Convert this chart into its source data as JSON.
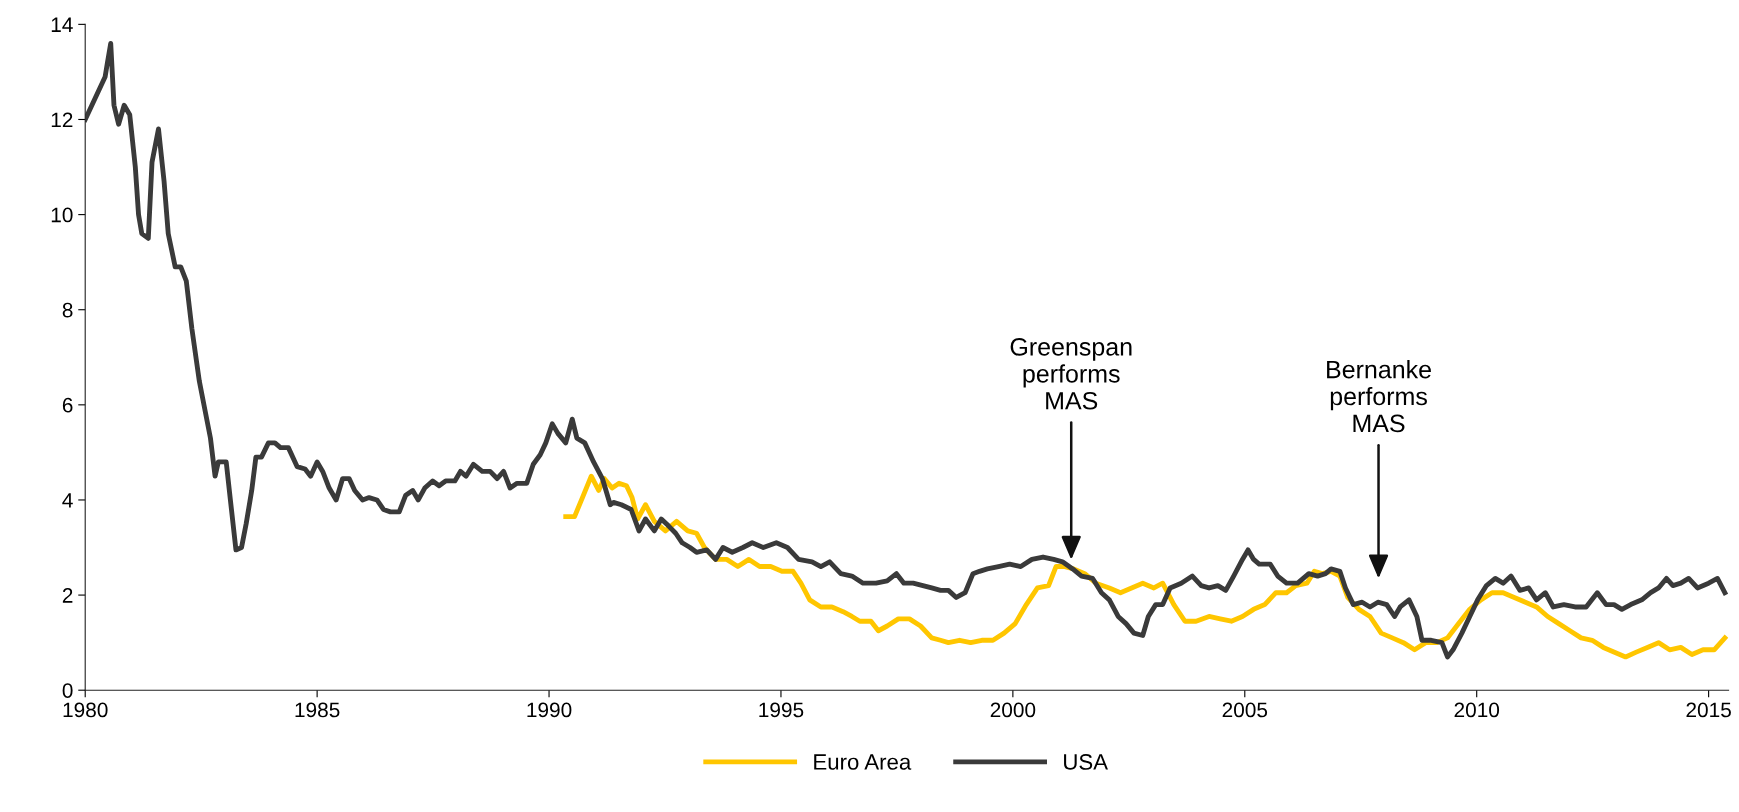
{
  "chart_data": {
    "type": "line",
    "xlim": [
      1980,
      2015.43
    ],
    "xticks": [
      1980,
      1985,
      1990,
      1995,
      2000,
      2005,
      2010,
      2015
    ],
    "ylim": [
      0,
      14
    ],
    "yticks": [
      0,
      2,
      4,
      6,
      8,
      10,
      12,
      14
    ],
    "grid": false,
    "legend": "bottom",
    "marker": "none",
    "line_style": "solid",
    "annotations": [
      "Greenspan\nperforms\nMAS",
      "Bernanke\nperforms\nMAS"
    ],
    "series": [
      {
        "name": "Euro Area",
        "color": "#ffc600",
        "x": [
          1990.36,
          1990.55,
          1990.72,
          1990.91,
          1991.07,
          1991.19,
          1991.36,
          1991.51,
          1991.67,
          1991.79,
          1991.91,
          1992.08,
          1992.27,
          1992.51,
          1992.75,
          1992.99,
          1993.18,
          1993.35,
          1993.59,
          1993.83,
          1994.07,
          1994.31,
          1994.54,
          1994.78,
          1995.02,
          1995.26,
          1995.43,
          1995.62,
          1995.86,
          1996.1,
          1996.34,
          1996.53,
          1996.7,
          1996.94,
          1997.1,
          1997.29,
          1997.53,
          1997.77,
          1998.01,
          1998.25,
          1998.44,
          1998.61,
          1998.85,
          1999.09,
          1999.33,
          1999.57,
          1999.81,
          2000.05,
          2000.29,
          2000.53,
          2000.77,
          2000.93,
          2001.12,
          2001.31,
          2001.55,
          2001.79,
          2002.08,
          2002.32,
          2002.56,
          2002.8,
          2003.04,
          2003.23,
          2003.47,
          2003.71,
          2003.95,
          2004.23,
          2004.47,
          2004.71,
          2004.95,
          2005.19,
          2005.43,
          2005.67,
          2005.9,
          2006.1,
          2006.34,
          2006.5,
          2006.67,
          2006.86,
          2007.05,
          2007.22,
          2007.46,
          2007.7,
          2007.94,
          2008.18,
          2008.42,
          2008.66,
          2008.9,
          2009.14,
          2009.37,
          2009.61,
          2009.85,
          2010.09,
          2010.33,
          2010.57,
          2010.81,
          2011.05,
          2011.29,
          2011.53,
          2011.77,
          2012.01,
          2012.25,
          2012.49,
          2012.73,
          2012.97,
          2013.21,
          2013.44,
          2013.68,
          2013.92,
          2014.16,
          2014.4,
          2014.64,
          2014.88,
          2015.12,
          2015.35
        ],
        "values": [
          3.65,
          3.65,
          4.05,
          4.5,
          4.2,
          4.45,
          4.25,
          4.35,
          4.3,
          4.05,
          3.6,
          3.9,
          3.55,
          3.35,
          3.55,
          3.35,
          3.3,
          3.0,
          2.75,
          2.75,
          2.6,
          2.75,
          2.6,
          2.6,
          2.5,
          2.5,
          2.25,
          1.9,
          1.75,
          1.75,
          1.65,
          1.55,
          1.45,
          1.45,
          1.25,
          1.35,
          1.5,
          1.5,
          1.35,
          1.1,
          1.05,
          1.0,
          1.05,
          1.0,
          1.05,
          1.05,
          1.2,
          1.4,
          1.8,
          2.15,
          2.2,
          2.6,
          2.6,
          2.55,
          2.45,
          2.25,
          2.15,
          2.05,
          2.15,
          2.25,
          2.15,
          2.25,
          1.8,
          1.45,
          1.45,
          1.55,
          1.5,
          1.45,
          1.55,
          1.7,
          1.8,
          2.05,
          2.05,
          2.2,
          2.25,
          2.5,
          2.45,
          2.5,
          2.4,
          1.95,
          1.7,
          1.55,
          1.2,
          1.1,
          1.0,
          0.85,
          1.0,
          1.0,
          1.1,
          1.4,
          1.7,
          1.9,
          2.05,
          2.05,
          1.95,
          1.85,
          1.75,
          1.55,
          1.4,
          1.25,
          1.1,
          1.05,
          0.9,
          0.8,
          0.7,
          0.8,
          0.9,
          1.0,
          0.85,
          0.9,
          0.75,
          0.85,
          0.85,
          1.1
        ]
      },
      {
        "name": "USA",
        "color": "#3a3a3a",
        "x": [
          1980.0,
          1980.43,
          1980.48,
          1980.55,
          1980.62,
          1980.72,
          1980.84,
          1980.96,
          1981.08,
          1981.15,
          1981.22,
          1981.36,
          1981.44,
          1981.58,
          1981.7,
          1981.79,
          1981.94,
          1982.06,
          1982.18,
          1982.3,
          1982.46,
          1982.58,
          1982.7,
          1982.8,
          1982.87,
          1983.04,
          1983.13,
          1983.25,
          1983.37,
          1983.47,
          1983.59,
          1983.68,
          1983.8,
          1983.95,
          1984.09,
          1984.21,
          1984.38,
          1984.57,
          1984.74,
          1984.86,
          1985.0,
          1985.12,
          1985.26,
          1985.41,
          1985.55,
          1985.69,
          1985.81,
          1985.98,
          1986.12,
          1986.29,
          1986.43,
          1986.58,
          1986.77,
          1986.91,
          1987.06,
          1987.18,
          1987.32,
          1987.49,
          1987.63,
          1987.77,
          1987.97,
          1988.09,
          1988.21,
          1988.37,
          1988.56,
          1988.73,
          1988.88,
          1989.02,
          1989.16,
          1989.31,
          1989.52,
          1989.66,
          1989.81,
          1989.93,
          1990.07,
          1990.19,
          1990.36,
          1990.5,
          1990.6,
          1990.77,
          1990.96,
          1991.15,
          1991.32,
          1991.39,
          1991.56,
          1991.77,
          1991.94,
          1992.08,
          1992.27,
          1992.42,
          1992.58,
          1992.73,
          1992.87,
          1993.04,
          1993.18,
          1993.4,
          1993.59,
          1993.75,
          1993.95,
          1994.18,
          1994.38,
          1994.62,
          1994.9,
          1995.14,
          1995.38,
          1995.67,
          1995.86,
          1996.05,
          1996.29,
          1996.53,
          1996.77,
          1997.05,
          1997.29,
          1997.49,
          1997.65,
          1997.85,
          1998.06,
          1998.25,
          1998.44,
          1998.61,
          1998.78,
          1998.97,
          1999.14,
          1999.28,
          1999.45,
          1999.69,
          1999.93,
          2000.17,
          2000.41,
          2000.65,
          2000.88,
          2001.07,
          2001.29,
          2001.48,
          2001.72,
          2001.91,
          2002.08,
          2002.27,
          2002.44,
          2002.61,
          2002.8,
          2002.92,
          2003.08,
          2003.23,
          2003.39,
          2003.63,
          2003.87,
          2004.06,
          2004.23,
          2004.42,
          2004.59,
          2004.76,
          2004.95,
          2005.07,
          2005.19,
          2005.31,
          2005.55,
          2005.71,
          2005.9,
          2006.14,
          2006.38,
          2006.57,
          2006.74,
          2006.86,
          2007.05,
          2007.17,
          2007.34,
          2007.53,
          2007.7,
          2007.87,
          2008.06,
          2008.23,
          2008.35,
          2008.54,
          2008.71,
          2008.82,
          2009.02,
          2009.25,
          2009.37,
          2009.49,
          2009.68,
          2009.85,
          2010.02,
          2010.21,
          2010.4,
          2010.57,
          2010.74,
          2010.93,
          2011.12,
          2011.29,
          2011.48,
          2011.65,
          2011.88,
          2012.12,
          2012.36,
          2012.6,
          2012.79,
          2012.96,
          2013.13,
          2013.32,
          2013.56,
          2013.75,
          2013.92,
          2014.09,
          2014.23,
          2014.4,
          2014.57,
          2014.76,
          2015.0,
          2015.19,
          2015.35
        ],
        "values": [
          12.0,
          12.9,
          13.2,
          13.6,
          12.3,
          11.9,
          12.3,
          12.1,
          11.0,
          10.0,
          9.6,
          9.5,
          11.1,
          11.8,
          10.7,
          9.6,
          8.9,
          8.9,
          8.6,
          7.6,
          6.5,
          5.9,
          5.3,
          4.5,
          4.8,
          4.8,
          4.0,
          2.95,
          3.0,
          3.5,
          4.2,
          4.9,
          4.9,
          5.2,
          5.2,
          5.1,
          5.1,
          4.7,
          4.65,
          4.5,
          4.8,
          4.6,
          4.25,
          4.0,
          4.45,
          4.45,
          4.2,
          4.0,
          4.05,
          4.0,
          3.8,
          3.75,
          3.75,
          4.1,
          4.2,
          4.0,
          4.25,
          4.4,
          4.3,
          4.4,
          4.4,
          4.6,
          4.5,
          4.75,
          4.6,
          4.6,
          4.45,
          4.6,
          4.25,
          4.35,
          4.35,
          4.75,
          4.95,
          5.2,
          5.6,
          5.4,
          5.2,
          5.7,
          5.3,
          5.2,
          4.8,
          4.45,
          3.9,
          3.95,
          3.9,
          3.8,
          3.35,
          3.6,
          3.35,
          3.6,
          3.45,
          3.3,
          3.1,
          3.0,
          2.9,
          2.95,
          2.75,
          3.0,
          2.9,
          3.0,
          3.1,
          3.0,
          3.1,
          3.0,
          2.75,
          2.7,
          2.6,
          2.7,
          2.45,
          2.4,
          2.25,
          2.25,
          2.3,
          2.45,
          2.25,
          2.25,
          2.2,
          2.15,
          2.1,
          2.1,
          1.95,
          2.05,
          2.45,
          2.5,
          2.55,
          2.6,
          2.65,
          2.6,
          2.75,
          2.8,
          2.75,
          2.7,
          2.55,
          2.4,
          2.35,
          2.05,
          1.9,
          1.55,
          1.4,
          1.2,
          1.15,
          1.55,
          1.8,
          1.8,
          2.15,
          2.25,
          2.4,
          2.2,
          2.15,
          2.2,
          2.1,
          2.4,
          2.75,
          2.95,
          2.75,
          2.65,
          2.65,
          2.4,
          2.25,
          2.25,
          2.45,
          2.4,
          2.45,
          2.55,
          2.5,
          2.15,
          1.8,
          1.85,
          1.75,
          1.85,
          1.8,
          1.55,
          1.75,
          1.9,
          1.55,
          1.05,
          1.05,
          1.0,
          0.7,
          0.85,
          1.2,
          1.55,
          1.9,
          2.2,
          2.35,
          2.25,
          2.4,
          2.1,
          2.15,
          1.9,
          2.05,
          1.75,
          1.8,
          1.75,
          1.75,
          2.05,
          1.8,
          1.8,
          1.7,
          1.8,
          1.9,
          2.05,
          2.15,
          2.35,
          2.2,
          2.25,
          2.35,
          2.15,
          2.25,
          2.35,
          2.05
        ]
      }
    ]
  }
}
